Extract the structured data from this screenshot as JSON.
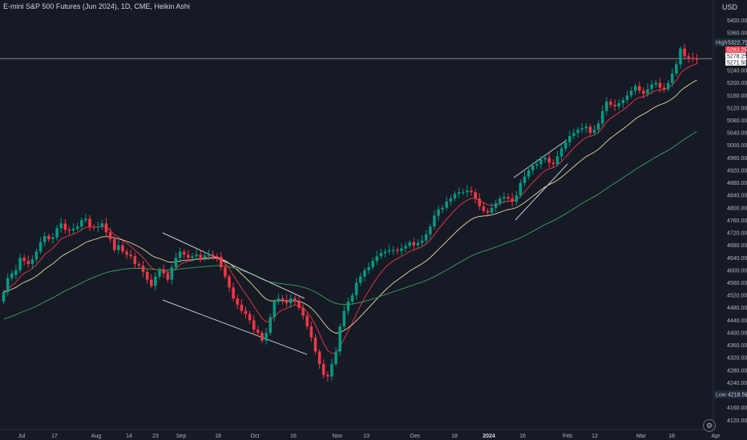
{
  "header": {
    "title": "E-mini S&P 500 Futures (Jun 2024), 1D, CME, Heikin Ashi",
    "currency": "USD"
  },
  "chart_data": {
    "type": "candlestick",
    "style": "heikin-ashi",
    "y_axis": {
      "ylim": [
        4090,
        5445
      ],
      "ticks": [
        5400,
        5360,
        5320,
        5280,
        5240,
        5200,
        5160,
        5120,
        5080,
        5040,
        5000,
        4960,
        4920,
        4880,
        4840,
        4800,
        4760,
        4720,
        4680,
        4640,
        4600,
        4560,
        4520,
        4480,
        4440,
        4400,
        4360,
        4320,
        4280,
        4240,
        4200,
        4160,
        4120
      ],
      "tick_labels": [
        "5400.00",
        "5360.00",
        "5320.00",
        "5280.00",
        "5240.00",
        "5200.00",
        "5160.00",
        "5120.00",
        "5080.00",
        "5040.00",
        "5000.00",
        "4960.00",
        "4920.00",
        "4880.00",
        "4840.00",
        "4800.00",
        "4760.00",
        "4720.00",
        "4680.00",
        "4640.00",
        "4600.00",
        "4560.00",
        "4520.00",
        "4480.00",
        "4440.00",
        "4400.00",
        "4360.00",
        "4320.00",
        "4280.00",
        "4240.00",
        "4200.00",
        "4160.00",
        "4120.00"
      ]
    },
    "x_axis": {
      "tick_labels": [
        "Jul",
        "17",
        "Aug",
        "14",
        "23",
        "Sep",
        "18",
        "Oct",
        "16",
        "Nov",
        "13",
        "Dec",
        "18",
        "2024",
        "16",
        "Feb",
        "12",
        "Mar",
        "18",
        "Apr"
      ],
      "bold_labels": [
        "2024"
      ]
    },
    "high_label": {
      "text": "High",
      "value": "5322.75"
    },
    "low_label": {
      "text": "Low",
      "value": "4218.50"
    },
    "price_tags": [
      {
        "label": "5283.25",
        "price": 5283.25,
        "color": "#f23645"
      },
      {
        "label": "5278.25",
        "price": 5278.25,
        "color": "#ffffff"
      },
      {
        "label": "5271.50",
        "price": 5271.5,
        "color": "#ffffff"
      }
    ],
    "horizontal_line": 5278,
    "colors": {
      "up": "#089981",
      "down": "#f23645",
      "ma_fast": "#f23645",
      "ma_mid": "#e8d6a3",
      "ma_slow": "#3aa35a",
      "trendline": "#c8cad2"
    },
    "candles": [
      [
        4500,
        4530
      ],
      [
        4530,
        4575
      ],
      [
        4575,
        4590
      ],
      [
        4585,
        4600
      ],
      [
        4600,
        4640
      ],
      [
        4640,
        4630
      ],
      [
        4630,
        4620
      ],
      [
        4620,
        4635
      ],
      [
        4635,
        4660
      ],
      [
        4660,
        4690
      ],
      [
        4690,
        4710
      ],
      [
        4710,
        4700
      ],
      [
        4700,
        4705
      ],
      [
        4705,
        4735
      ],
      [
        4735,
        4750
      ],
      [
        4750,
        4730
      ],
      [
        4730,
        4728
      ],
      [
        4728,
        4733
      ],
      [
        4733,
        4740
      ],
      [
        4740,
        4760
      ],
      [
        4760,
        4765
      ],
      [
        4765,
        4740
      ],
      [
        4740,
        4738
      ],
      [
        4738,
        4740
      ],
      [
        4740,
        4750
      ],
      [
        4750,
        4722
      ],
      [
        4722,
        4700
      ],
      [
        4700,
        4665
      ],
      [
        4665,
        4680
      ],
      [
        4680,
        4660
      ],
      [
        4660,
        4650
      ],
      [
        4650,
        4645
      ],
      [
        4645,
        4620
      ],
      [
        4620,
        4615
      ],
      [
        4615,
        4595
      ],
      [
        4595,
        4570
      ],
      [
        4570,
        4550
      ],
      [
        4550,
        4580
      ],
      [
        4580,
        4600
      ],
      [
        4600,
        4590
      ],
      [
        4590,
        4570
      ],
      [
        4570,
        4610
      ],
      [
        4610,
        4640
      ],
      [
        4640,
        4660
      ],
      [
        4660,
        4650
      ],
      [
        4650,
        4640
      ],
      [
        4640,
        4645
      ],
      [
        4645,
        4650
      ],
      [
        4650,
        4640
      ],
      [
        4640,
        4648
      ],
      [
        4648,
        4650
      ],
      [
        4650,
        4645
      ],
      [
        4645,
        4643
      ],
      [
        4643,
        4610
      ],
      [
        4610,
        4580
      ],
      [
        4580,
        4545
      ],
      [
        4545,
        4510
      ],
      [
        4510,
        4490
      ],
      [
        4490,
        4470
      ],
      [
        4470,
        4460
      ],
      [
        4460,
        4440
      ],
      [
        4440,
        4410
      ],
      [
        4410,
        4400
      ],
      [
        4400,
        4375
      ],
      [
        4375,
        4400
      ],
      [
        4400,
        4450
      ],
      [
        4450,
        4500
      ],
      [
        4500,
        4510
      ],
      [
        4510,
        4505
      ],
      [
        4505,
        4495
      ],
      [
        4495,
        4510
      ],
      [
        4510,
        4500
      ],
      [
        4500,
        4480
      ],
      [
        4480,
        4455
      ],
      [
        4455,
        4420
      ],
      [
        4420,
        4385
      ],
      [
        4385,
        4340
      ],
      [
        4340,
        4300
      ],
      [
        4300,
        4265
      ],
      [
        4265,
        4260
      ],
      [
        4260,
        4300
      ],
      [
        4300,
        4340
      ],
      [
        4340,
        4420
      ],
      [
        4420,
        4470
      ],
      [
        4470,
        4500
      ],
      [
        4500,
        4520
      ],
      [
        4520,
        4560
      ],
      [
        4560,
        4580
      ],
      [
        4580,
        4600
      ],
      [
        4600,
        4610
      ],
      [
        4610,
        4630
      ],
      [
        4630,
        4645
      ],
      [
        4645,
        4655
      ],
      [
        4655,
        4660
      ],
      [
        4660,
        4665
      ],
      [
        4665,
        4665
      ],
      [
        4665,
        4662
      ],
      [
        4662,
        4670
      ],
      [
        4670,
        4678
      ],
      [
        4678,
        4690
      ],
      [
        4690,
        4680
      ],
      [
        4680,
        4688
      ],
      [
        4688,
        4695
      ],
      [
        4695,
        4715
      ],
      [
        4715,
        4740
      ],
      [
        4740,
        4775
      ],
      [
        4775,
        4795
      ],
      [
        4795,
        4800
      ],
      [
        4800,
        4820
      ],
      [
        4820,
        4830
      ],
      [
        4830,
        4845
      ],
      [
        4845,
        4850
      ],
      [
        4850,
        4850
      ],
      [
        4850,
        4855
      ],
      [
        4855,
        4850
      ],
      [
        4850,
        4830
      ],
      [
        4830,
        4805
      ],
      [
        4805,
        4790
      ],
      [
        4790,
        4785
      ],
      [
        4785,
        4800
      ],
      [
        4800,
        4815
      ],
      [
        4815,
        4830
      ],
      [
        4830,
        4835
      ],
      [
        4835,
        4830
      ],
      [
        4830,
        4820
      ],
      [
        4820,
        4840
      ],
      [
        4840,
        4880
      ],
      [
        4880,
        4900
      ],
      [
        4900,
        4920
      ],
      [
        4920,
        4935
      ],
      [
        4935,
        4940
      ],
      [
        4940,
        4955
      ],
      [
        4955,
        4960
      ],
      [
        4960,
        4945
      ],
      [
        4945,
        4940
      ],
      [
        4940,
        4965
      ],
      [
        4965,
        4990
      ],
      [
        4990,
        5010
      ],
      [
        5010,
        5030
      ],
      [
        5030,
        5040
      ],
      [
        5040,
        5050
      ],
      [
        5050,
        5055
      ],
      [
        5055,
        5060
      ],
      [
        5060,
        5040
      ],
      [
        5040,
        5050
      ],
      [
        5050,
        5070
      ],
      [
        5070,
        5110
      ],
      [
        5110,
        5140
      ],
      [
        5140,
        5130
      ],
      [
        5130,
        5125
      ],
      [
        5125,
        5135
      ],
      [
        5135,
        5145
      ],
      [
        5145,
        5160
      ],
      [
        5160,
        5175
      ],
      [
        5175,
        5190
      ],
      [
        5190,
        5175
      ],
      [
        5175,
        5165
      ],
      [
        5165,
        5180
      ],
      [
        5180,
        5195
      ],
      [
        5195,
        5200
      ],
      [
        5200,
        5185
      ],
      [
        5185,
        5180
      ],
      [
        5180,
        5200
      ],
      [
        5200,
        5230
      ],
      [
        5230,
        5260
      ],
      [
        5260,
        5310
      ],
      [
        5310,
        5285
      ],
      [
        5285,
        5280
      ],
      [
        5280,
        5278
      ],
      [
        5278,
        5276
      ]
    ]
  }
}
